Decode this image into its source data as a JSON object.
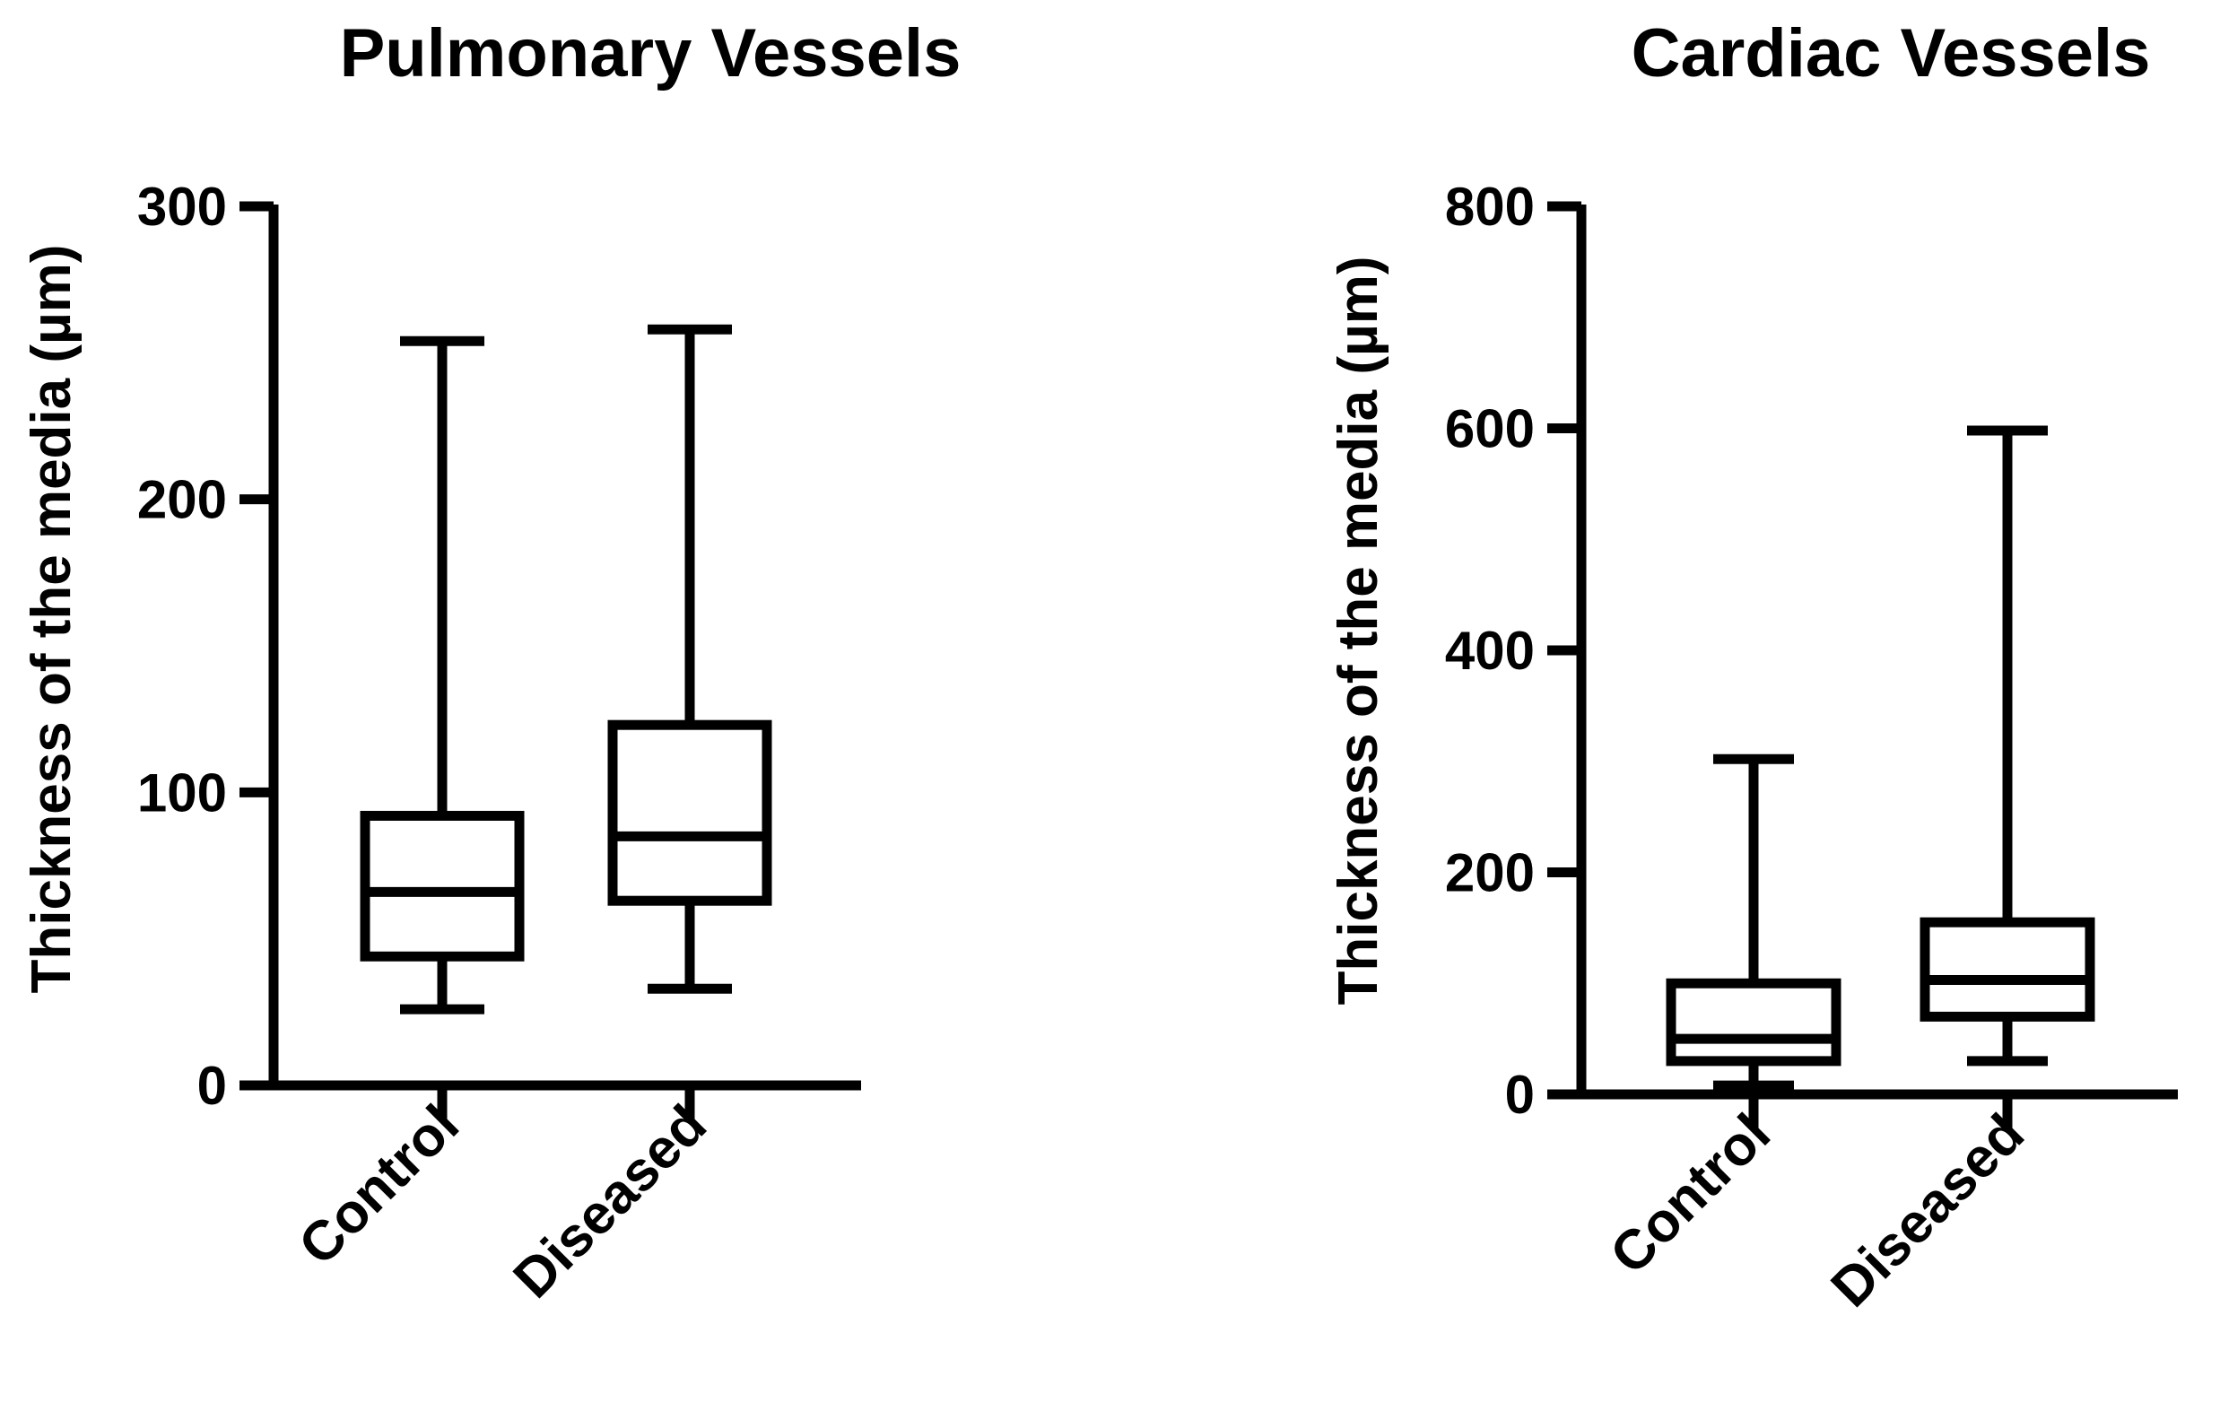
{
  "chart_data": [
    {
      "type": "boxplot",
      "title": "Pulmonary Vessels",
      "xlabel": "",
      "ylabel": "Thickness of the media (µm)",
      "ylim": [
        0,
        300
      ],
      "yticks": [
        0,
        100,
        200,
        300
      ],
      "categories": [
        "Control",
        "Diseased"
      ],
      "boxes": [
        {
          "name": "Control",
          "min": 26,
          "q1": 44,
          "median": 66,
          "q3": 92,
          "max": 254
        },
        {
          "name": "Diseased",
          "min": 33,
          "q1": 63,
          "median": 85,
          "q3": 123,
          "max": 258
        }
      ]
    },
    {
      "type": "boxplot",
      "title": "Cardiac Vessels",
      "xlabel": "",
      "ylabel": "Thickness of the media (µm)",
      "ylim": [
        0,
        800
      ],
      "yticks": [
        0,
        200,
        400,
        600,
        800
      ],
      "categories": [
        "Control",
        "Diseased"
      ],
      "boxes": [
        {
          "name": "Control",
          "min": 8,
          "q1": 30,
          "median": 50,
          "q3": 100,
          "max": 302
        },
        {
          "name": "Diseased",
          "min": 30,
          "q1": 70,
          "median": 103,
          "q3": 155,
          "max": 598
        }
      ]
    }
  ]
}
